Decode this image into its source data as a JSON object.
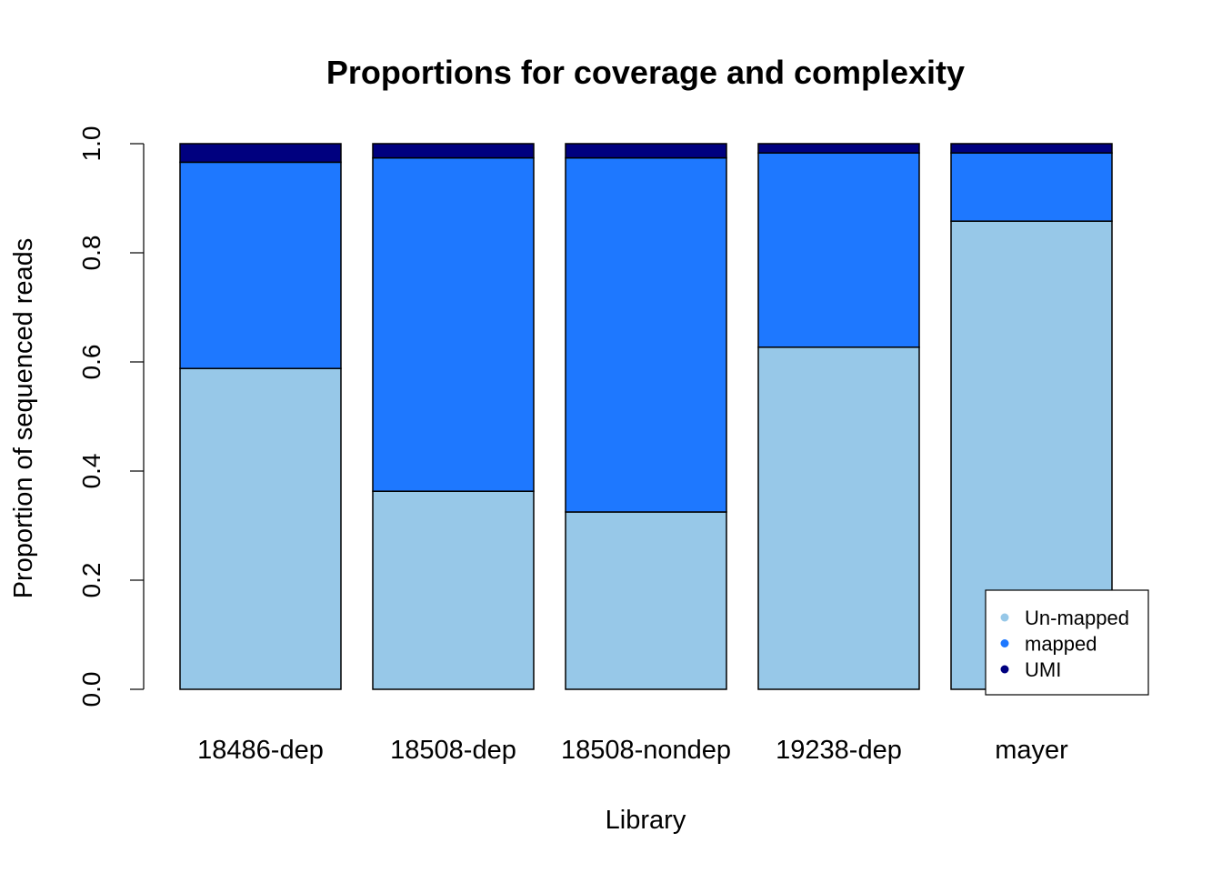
{
  "chart_data": {
    "type": "bar",
    "stacked": true,
    "title": "Proportions for coverage and complexity",
    "xlabel": "Library",
    "ylabel": "Proportion of sequenced reads",
    "ylim": [
      0,
      1
    ],
    "yticks": [
      "0.0",
      "0.2",
      "0.4",
      "0.6",
      "0.8",
      "1.0"
    ],
    "categories": [
      "18486-dep",
      "18508-dep",
      "18508-nondep",
      "19238-dep",
      "mayer"
    ],
    "series": [
      {
        "name": "Un-mapped",
        "color": "#97c8e8",
        "values": [
          0.588,
          0.363,
          0.325,
          0.627,
          0.858
        ]
      },
      {
        "name": "mapped",
        "color": "#1e78ff",
        "values": [
          0.378,
          0.611,
          0.649,
          0.356,
          0.125
        ]
      },
      {
        "name": "UMI",
        "color": "#00007f",
        "values": [
          0.034,
          0.026,
          0.026,
          0.017,
          0.017
        ]
      }
    ],
    "legend_position": "bottom-right",
    "grid": false
  }
}
